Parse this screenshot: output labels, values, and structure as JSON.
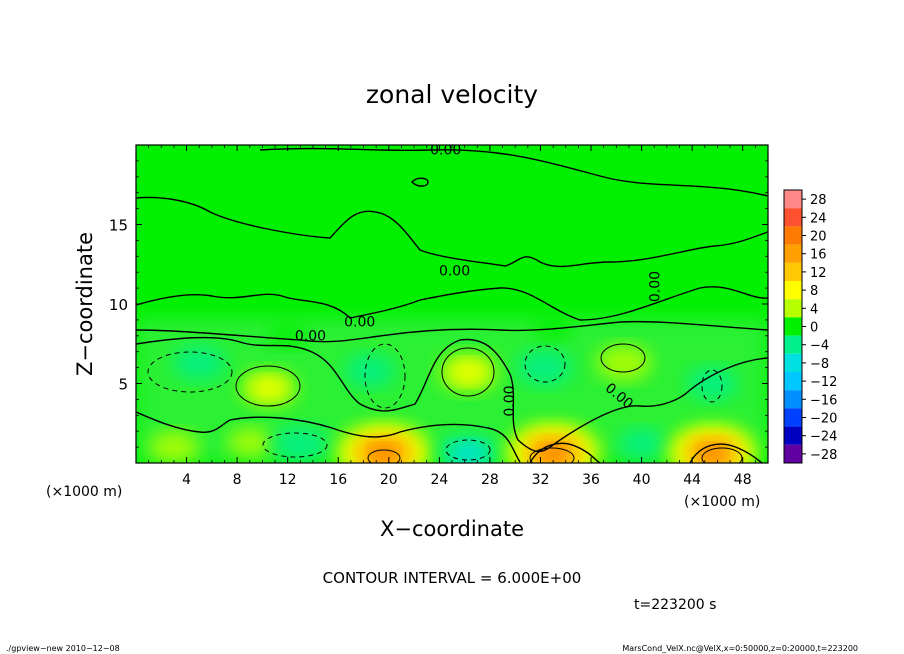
{
  "chart_data": {
    "type": "heatmap",
    "title": "zonal velocity",
    "xlabel": "X−coordinate",
    "ylabel": "Z−coordinate",
    "x_unit_left": "(×1000 m)",
    "x_unit_right": "(×1000 m)",
    "xlim": [
      0,
      50
    ],
    "ylim": [
      0,
      20
    ],
    "x_ticks": [
      4,
      8,
      12,
      16,
      20,
      24,
      28,
      32,
      36,
      40,
      44,
      48
    ],
    "y_ticks": [
      5,
      10,
      15
    ],
    "contour_interval_text": "CONTOUR INTERVAL = 6.000E+00",
    "time_text": "t=223200 s",
    "contour_labels": [
      {
        "text": "0.00",
        "x": 24.5,
        "y": 19.4
      },
      {
        "text": "0.00",
        "x": 25.2,
        "y": 11.8
      },
      {
        "text": "0.00",
        "x": 17.7,
        "y": 8.6
      },
      {
        "text": "0.00",
        "x": 13.8,
        "y": 7.7
      },
      {
        "text": "0.00",
        "x": 41.4,
        "y": 11.1
      },
      {
        "text": "0.00",
        "x": 29.9,
        "y": 3.9
      },
      {
        "text": "0.00",
        "x": 38.0,
        "y": 4.0
      }
    ],
    "colorbar": {
      "levels": [
        28,
        24,
        20,
        16,
        12,
        8,
        4,
        0,
        -4,
        -8,
        -12,
        -16,
        -20,
        -24,
        -28
      ],
      "tick_labels": [
        "28",
        "24",
        "20",
        "16",
        "12",
        "8",
        "4",
        "0",
        "−4",
        "−8",
        "−12",
        "−16",
        "−20",
        "−24",
        "−28"
      ],
      "colors": [
        "#ff8888",
        "#ff5030",
        "#ff7a00",
        "#ffa000",
        "#ffc800",
        "#ffff00",
        "#b8ff00",
        "#00f000",
        "#00f08c",
        "#00e0e0",
        "#00c8ff",
        "#0090ff",
        "#0040ff",
        "#0000c0",
        "#6000a0"
      ]
    },
    "anomalies": [
      {
        "x": 5.0,
        "y": 6.3,
        "v": -6
      },
      {
        "x": 10.5,
        "y": 4.7,
        "v": 8
      },
      {
        "x": 18.5,
        "y": 5.8,
        "v": -5
      },
      {
        "x": 26.3,
        "y": 5.7,
        "v": 9
      },
      {
        "x": 32.3,
        "y": 6.0,
        "v": -7
      },
      {
        "x": 38.6,
        "y": 6.3,
        "v": 7
      },
      {
        "x": 45.6,
        "y": 5.0,
        "v": -5
      },
      {
        "x": 3.0,
        "y": 1.0,
        "v": 5
      },
      {
        "x": 9.0,
        "y": 1.3,
        "v": 3
      },
      {
        "x": 13.0,
        "y": 1.2,
        "v": -7
      },
      {
        "x": 19.6,
        "y": 0.6,
        "v": 22
      },
      {
        "x": 26.3,
        "y": 0.6,
        "v": -9
      },
      {
        "x": 33.0,
        "y": 0.6,
        "v": 22
      },
      {
        "x": 40.0,
        "y": 1.2,
        "v": -4
      },
      {
        "x": 45.6,
        "y": 0.6,
        "v": 20
      },
      {
        "x": 12.0,
        "y": 8.0,
        "v": -1
      },
      {
        "x": 33.0,
        "y": 8.5,
        "v": 1
      }
    ]
  },
  "footer": {
    "left": "./gpview−new   2010−12−08",
    "right": "MarsCond_VelX.nc@VelX,x=0:50000,z=0:20000,t=223200"
  }
}
